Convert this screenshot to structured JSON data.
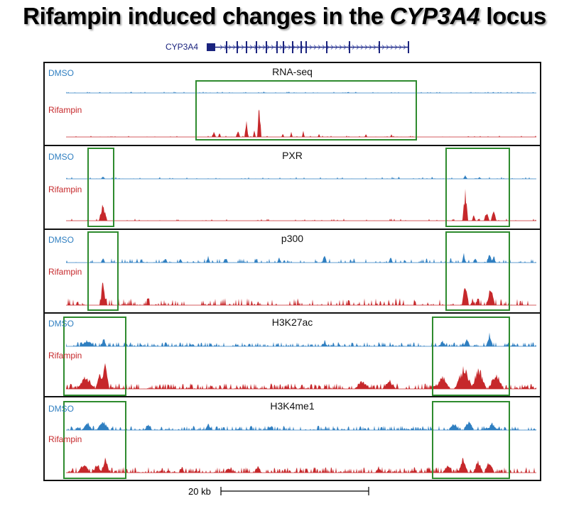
{
  "title_main": "Rifampin induced changes in the ",
  "title_gene": "CYP3A4",
  "title_tail": " locus",
  "gene_label": "CYP3A4",
  "dmso_label": "DMSO",
  "rifampin_label": "Rifampin",
  "panels": [
    {
      "id": "rnaseq",
      "title": "RNA-seq"
    },
    {
      "id": "pxr",
      "title": "PXR"
    },
    {
      "id": "p300",
      "title": "p300"
    },
    {
      "id": "h3k27ac",
      "title": "H3K27ac"
    },
    {
      "id": "h3k4me1",
      "title": "H3K4me1"
    }
  ],
  "scale_label": "20 kb",
  "colors": {
    "dmso": "#2f7fc1",
    "rifampin": "#c6282b",
    "highlight_box": "#2e8b2e",
    "gene": "#1a237e"
  }
}
